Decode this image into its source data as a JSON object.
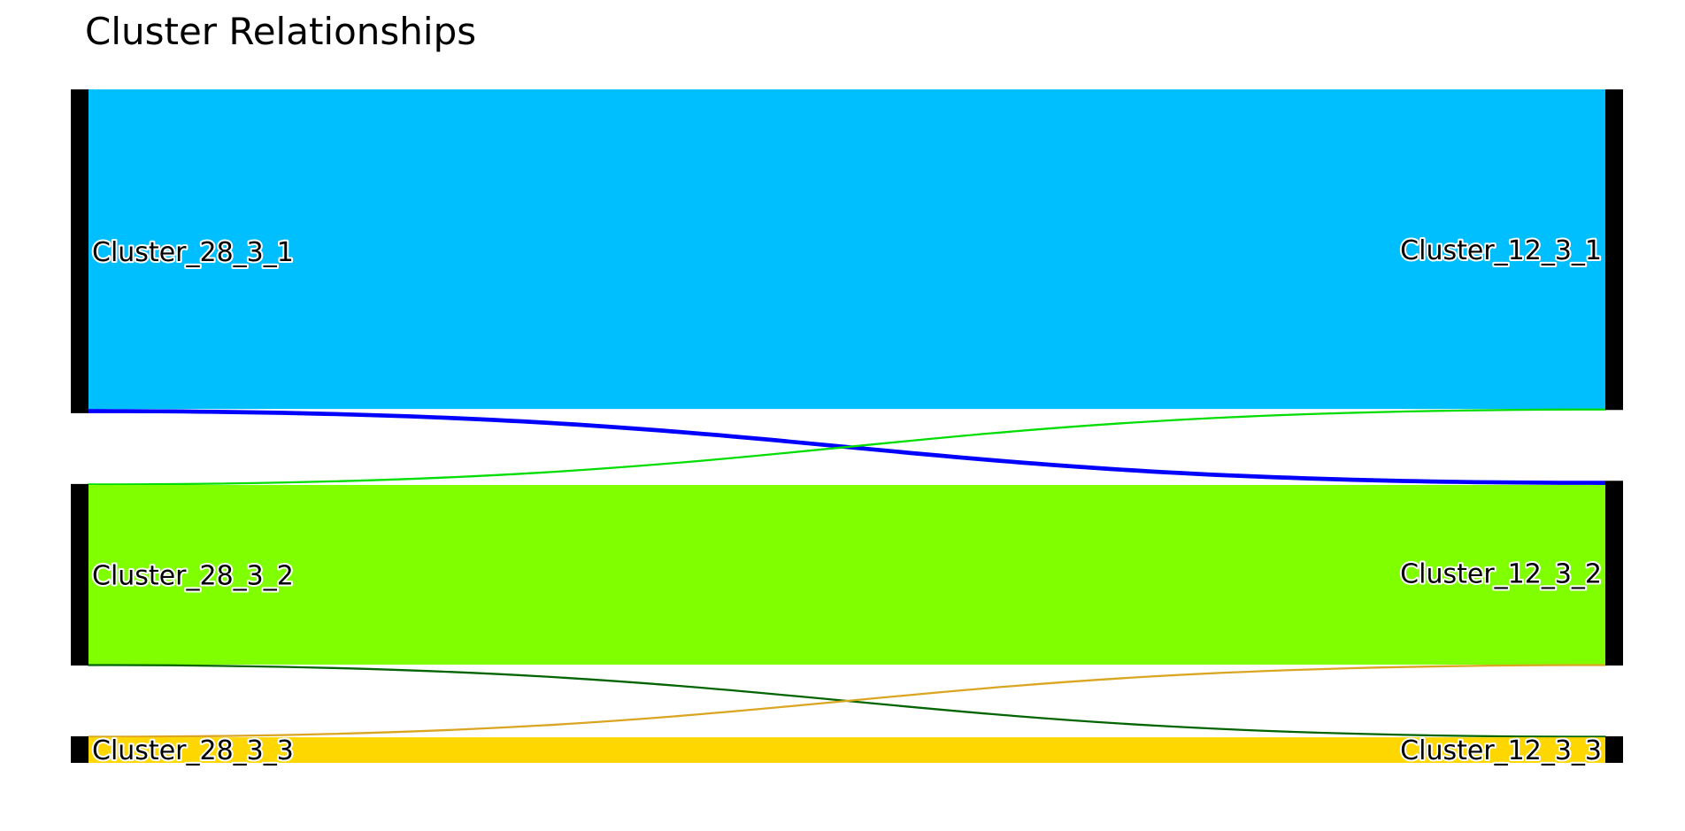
{
  "chart_data": {
    "type": "sankey",
    "title": "Cluster Relationships",
    "sources": [
      {
        "label": "Cluster_28_3_1",
        "color": "#00BFFF"
      },
      {
        "label": "Cluster_28_3_2",
        "color": "#7FFF00"
      },
      {
        "label": "Cluster_28_3_3",
        "color": "#FFD700"
      }
    ],
    "targets": [
      {
        "label": "Cluster_12_3_1"
      },
      {
        "label": "Cluster_12_3_2"
      },
      {
        "label": "Cluster_12_3_3"
      }
    ],
    "node_color": "#000000",
    "links": [
      {
        "source": 0,
        "target": 0,
        "value": 1000,
        "color": "#00BFFF"
      },
      {
        "source": 0,
        "target": 1,
        "value": 13,
        "color": "#0000FF"
      },
      {
        "source": 1,
        "target": 0,
        "value": 3,
        "color": "#00DD00"
      },
      {
        "source": 1,
        "target": 1,
        "value": 562,
        "color": "#7FFF00"
      },
      {
        "source": 1,
        "target": 2,
        "value": 3,
        "color": "#006400"
      },
      {
        "source": 2,
        "target": 1,
        "value": 3,
        "color": "#DAA520"
      },
      {
        "source": 2,
        "target": 2,
        "value": 80,
        "color": "#FFD700"
      }
    ]
  }
}
